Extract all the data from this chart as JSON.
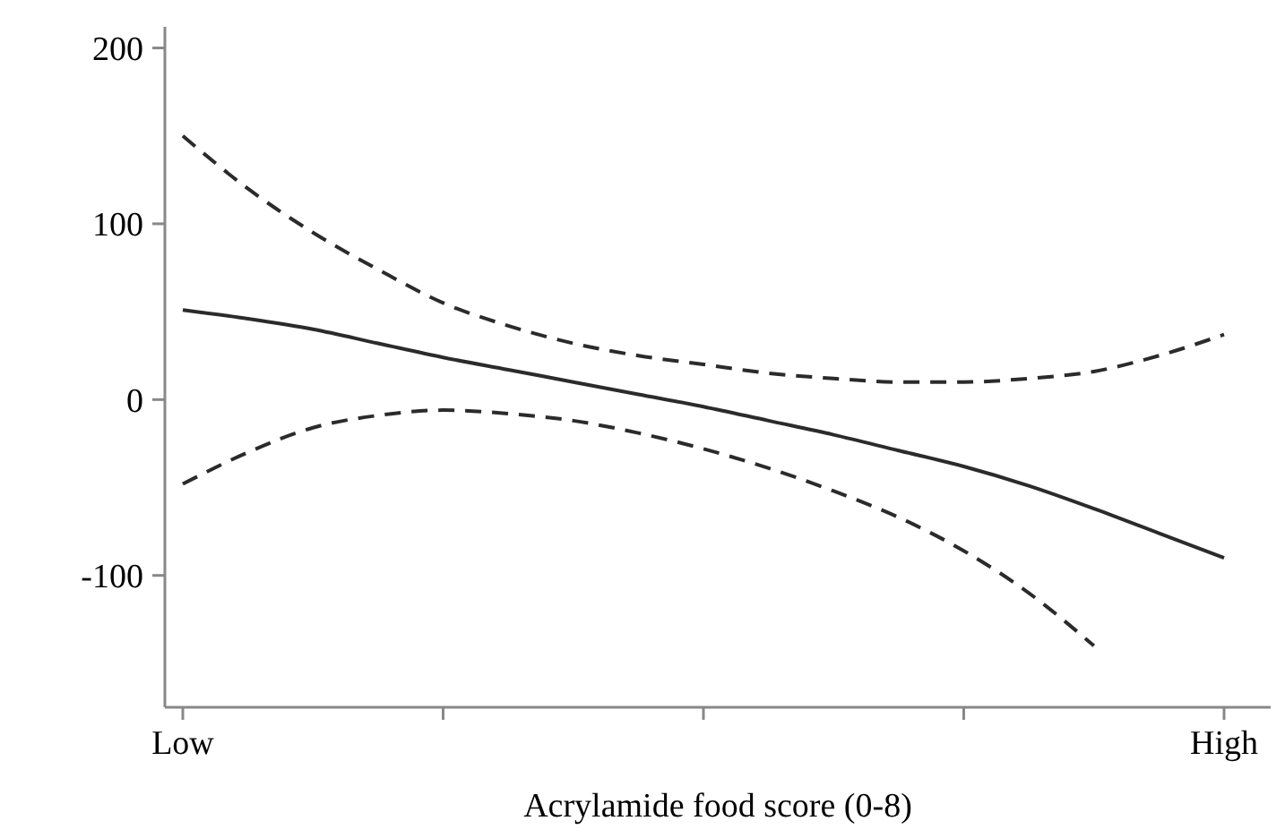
{
  "chart_data": {
    "type": "line",
    "xlabel": "Acrylamide food score (0-8)",
    "ylim": [
      -175,
      212
    ],
    "categories": [
      "Low",
      null,
      null,
      null,
      null,
      null,
      null,
      null,
      null,
      null,
      null,
      null,
      null,
      null,
      null,
      null,
      "High"
    ],
    "yticks": [
      -100,
      0,
      100,
      200
    ],
    "grid": false,
    "marker": "none",
    "series": [
      {
        "color": "#2b2b2b",
        "line_style": "solid",
        "values": [
          51,
          46,
          40,
          32,
          24,
          17,
          10,
          3,
          -4,
          -12,
          -20,
          -29,
          -38,
          -49,
          -62,
          -76,
          -90
        ]
      },
      {
        "color": "#2b2b2b",
        "line_style": "dashed",
        "values": [
          150,
          120,
          95,
          74,
          55,
          42,
          32,
          25,
          20,
          15,
          12,
          10,
          10,
          12,
          16,
          25,
          37
        ]
      },
      {
        "color": "#2b2b2b",
        "line_style": "dashed",
        "values": [
          -48,
          -30,
          -16,
          -9,
          -6,
          -8,
          -12,
          -19,
          -28,
          -39,
          -52,
          -67,
          -86,
          -110,
          -140,
          null,
          null
        ]
      }
    ]
  }
}
